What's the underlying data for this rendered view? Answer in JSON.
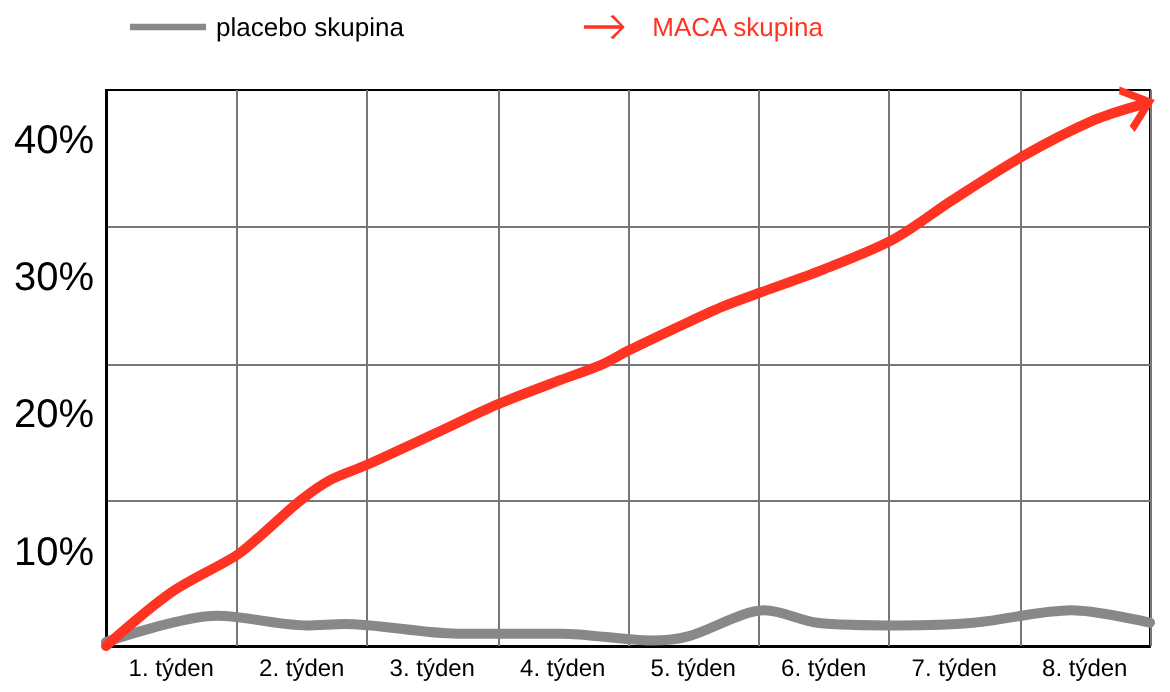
{
  "chart_data": {
    "type": "line",
    "xlim": [
      0,
      8
    ],
    "xticks": [
      {
        "value": 0,
        "label": null
      },
      {
        "value": 1,
        "label": null
      },
      {
        "value": 2,
        "label": null
      },
      {
        "value": 3,
        "label": null
      },
      {
        "value": 4,
        "label": null
      },
      {
        "value": 5,
        "label": null
      },
      {
        "value": 6,
        "label": null
      },
      {
        "value": 7,
        "label": null
      },
      {
        "value": 8,
        "label": null
      },
      {
        "value": 0.5,
        "label": "1. týden"
      },
      {
        "value": 1.5,
        "label": "2. týden"
      },
      {
        "value": 2.5,
        "label": "3. týden"
      },
      {
        "value": 3.5,
        "label": "4. týden"
      },
      {
        "value": 4.5,
        "label": "5. týden"
      },
      {
        "value": 5.5,
        "label": "6. týden"
      },
      {
        "value": 6.5,
        "label": "7. týden"
      },
      {
        "value": 7.5,
        "label": "8. týden"
      }
    ],
    "ylim": [
      3.2,
      43.7
    ],
    "yticks": [
      {
        "value": 10,
        "label": "10%"
      },
      {
        "value": 20,
        "label": "20%"
      },
      {
        "value": 30,
        "label": "30%"
      },
      {
        "value": 40,
        "label": "40%"
      },
      {
        "value": 13.8,
        "label": null
      },
      {
        "value": 23.7,
        "label": null
      },
      {
        "value": 33.8,
        "label": null
      }
    ],
    "grid": true,
    "legend": "top",
    "line_style": "solid",
    "series": [
      {
        "name": "placebo skupina",
        "color": "#888888",
        "x": [
          0,
          0.85,
          1.54,
          1.83,
          2.69,
          3.49,
          4.18,
          4.46,
          5.05,
          5.45,
          6.08,
          6.65,
          7.4,
          8
        ],
        "values": [
          3.5,
          5.4,
          4.7,
          4.8,
          4.1,
          4.1,
          3.6,
          3.9,
          5.8,
          4.9,
          4.7,
          4.9,
          5.8,
          4.9
        ]
      },
      {
        "name": "MACA skupina",
        "color": "#ff3322",
        "x": [
          0,
          0.5,
          1,
          1.18,
          1.49,
          1.72,
          2,
          2.57,
          3,
          3.49,
          3.8,
          4,
          4.42,
          4.72,
          5.03,
          5.49,
          6.03,
          6.49,
          7.03,
          7.57,
          7.92
        ],
        "values": [
          3.2,
          7.1,
          9.8,
          11.2,
          13.8,
          15.3,
          16.4,
          18.9,
          20.8,
          22.6,
          23.7,
          24.7,
          26.6,
          27.9,
          29,
          30.6,
          32.8,
          35.7,
          38.9,
          41.5,
          42.6
        ]
      }
    ]
  }
}
